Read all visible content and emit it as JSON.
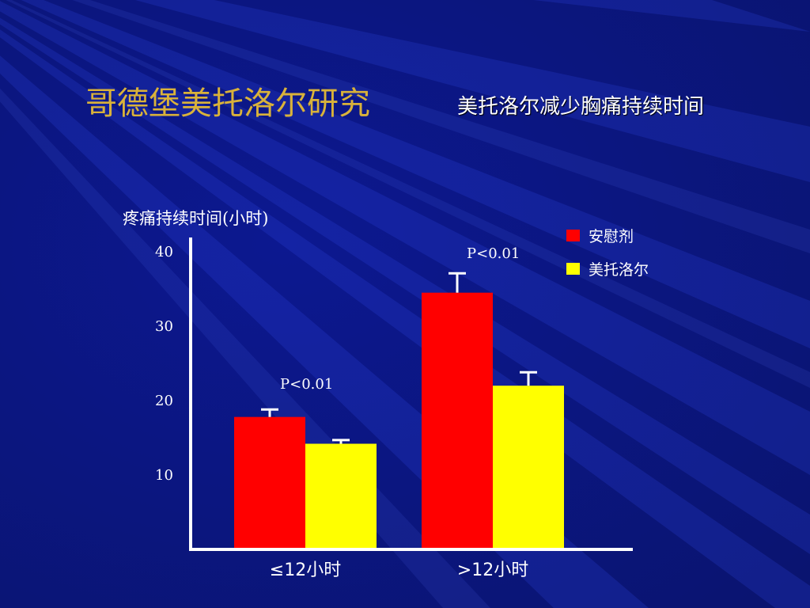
{
  "slide": {
    "title": "哥德堡美托洛尔研究",
    "subtitle": "美托洛尔减少胸痛持续时间"
  },
  "colors": {
    "background": "#0d1a8c",
    "title": "#d9b23a",
    "placebo": "#ff0000",
    "metoprolol": "#ffff00",
    "axis": "#ffffff"
  },
  "chart_data": {
    "type": "bar",
    "ylabel": "疼痛持续时间(小时)",
    "ylim": [
      0,
      40
    ],
    "yticks": [
      10,
      20,
      30,
      40
    ],
    "categories": [
      "≤12小时",
      ">12小时"
    ],
    "series": [
      {
        "name": "安慰剂",
        "values": [
          17.8,
          34.5
        ],
        "errors": [
          1.0,
          2.6
        ]
      },
      {
        "name": "美托洛尔",
        "values": [
          14.2,
          22.0
        ],
        "errors": [
          0.5,
          1.8
        ]
      }
    ],
    "annotations": [
      "P<0.01",
      "P<0.01"
    ],
    "legend_position": "top-right",
    "grid": false
  }
}
